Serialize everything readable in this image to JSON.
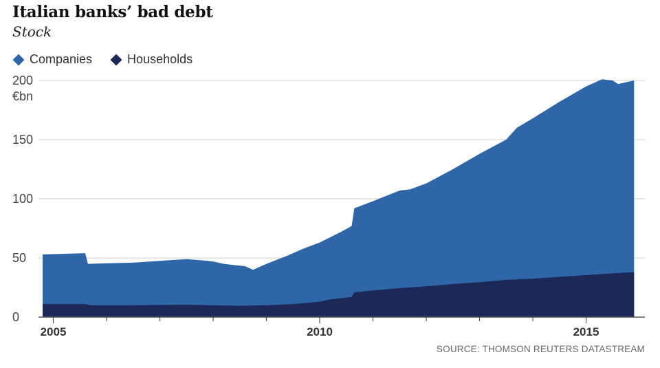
{
  "chart_data": {
    "type": "area",
    "stacked": true,
    "title": "Italian banks’ bad debt",
    "subtitle": "Stock",
    "unit": "€bn",
    "source": "SOURCE: THOMSON REUTERS DATASTREAM",
    "ylim": [
      0,
      200
    ],
    "yticks": [
      0,
      50,
      100,
      150,
      200
    ],
    "xlim": [
      2004.8,
      2016.0
    ],
    "xticks": [
      {
        "value": 2005,
        "label": "2005"
      },
      {
        "value": 2010,
        "label": "2010"
      },
      {
        "value": 2015,
        "label": "2015"
      }
    ],
    "grid": true,
    "legend_position": "top-left",
    "series": [
      {
        "name": "Households",
        "color": "#1b2858",
        "points": [
          [
            2004.8,
            11
          ],
          [
            2005.6,
            11
          ],
          [
            2005.7,
            10
          ],
          [
            2006.5,
            10
          ],
          [
            2007.5,
            10.5
          ],
          [
            2008.5,
            9.5
          ],
          [
            2009.0,
            10
          ],
          [
            2009.5,
            11
          ],
          [
            2010.0,
            13
          ],
          [
            2010.2,
            15
          ],
          [
            2010.6,
            17
          ],
          [
            2010.65,
            21
          ],
          [
            2011.0,
            22.5
          ],
          [
            2011.5,
            24.5
          ],
          [
            2012.0,
            26
          ],
          [
            2012.5,
            28
          ],
          [
            2013.0,
            29.5
          ],
          [
            2013.5,
            31.5
          ],
          [
            2014.0,
            32.5
          ],
          [
            2014.5,
            34
          ],
          [
            2015.0,
            35.5
          ],
          [
            2015.5,
            37
          ],
          [
            2015.9,
            38
          ]
        ]
      },
      {
        "name": "Companies",
        "color": "#2e66a8",
        "total_points": [
          [
            2004.8,
            53
          ],
          [
            2005.6,
            54
          ],
          [
            2005.65,
            45
          ],
          [
            2006.0,
            45.5
          ],
          [
            2006.5,
            46
          ],
          [
            2007.0,
            47.5
          ],
          [
            2007.5,
            49
          ],
          [
            2007.8,
            48
          ],
          [
            2008.0,
            47
          ],
          [
            2008.2,
            45
          ],
          [
            2008.4,
            44
          ],
          [
            2008.6,
            43
          ],
          [
            2008.75,
            40
          ],
          [
            2009.0,
            45
          ],
          [
            2009.4,
            52
          ],
          [
            2009.7,
            58
          ],
          [
            2010.0,
            63
          ],
          [
            2010.4,
            72
          ],
          [
            2010.6,
            77
          ],
          [
            2010.65,
            92
          ],
          [
            2011.0,
            98
          ],
          [
            2011.5,
            107
          ],
          [
            2011.7,
            108
          ],
          [
            2012.0,
            113
          ],
          [
            2012.5,
            125
          ],
          [
            2013.0,
            138
          ],
          [
            2013.5,
            150
          ],
          [
            2013.7,
            160
          ],
          [
            2014.0,
            168
          ],
          [
            2014.5,
            182
          ],
          [
            2015.0,
            195
          ],
          [
            2015.3,
            201
          ],
          [
            2015.5,
            200
          ],
          [
            2015.6,
            197
          ],
          [
            2015.9,
            200
          ]
        ]
      }
    ]
  },
  "colors": {
    "companies": "#2e66a8",
    "households": "#1b2858",
    "grid": "#d9d9d9",
    "axis": "#555555"
  }
}
